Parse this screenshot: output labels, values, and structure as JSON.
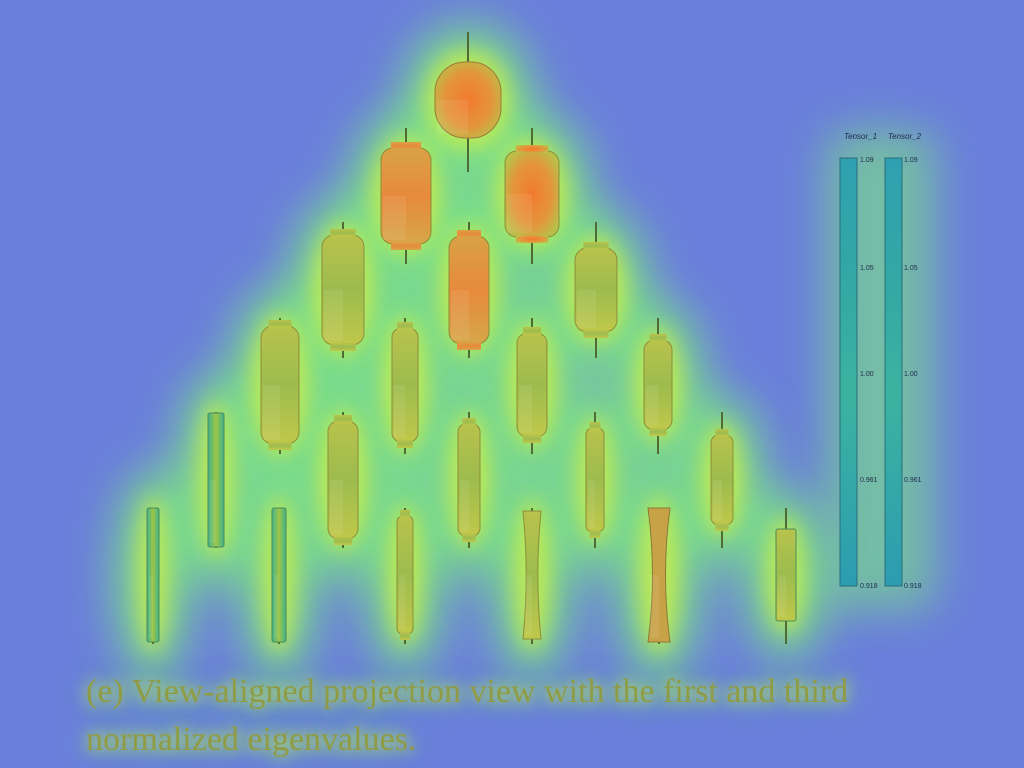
{
  "colorbar": {
    "title_1": "Tensor_1",
    "title_2": "Tensor_2",
    "ticks": [
      "1.09",
      "1.05",
      "1.00",
      "0.961",
      "0.918"
    ]
  },
  "caption": "(e) View-aligned projection view with the first and third normalized eigenvalues.",
  "colors": {
    "background": "#6a7fdb",
    "halo": "#7ef07a",
    "glyph": "#c2d64a",
    "hot": "#ef8a3a"
  }
}
